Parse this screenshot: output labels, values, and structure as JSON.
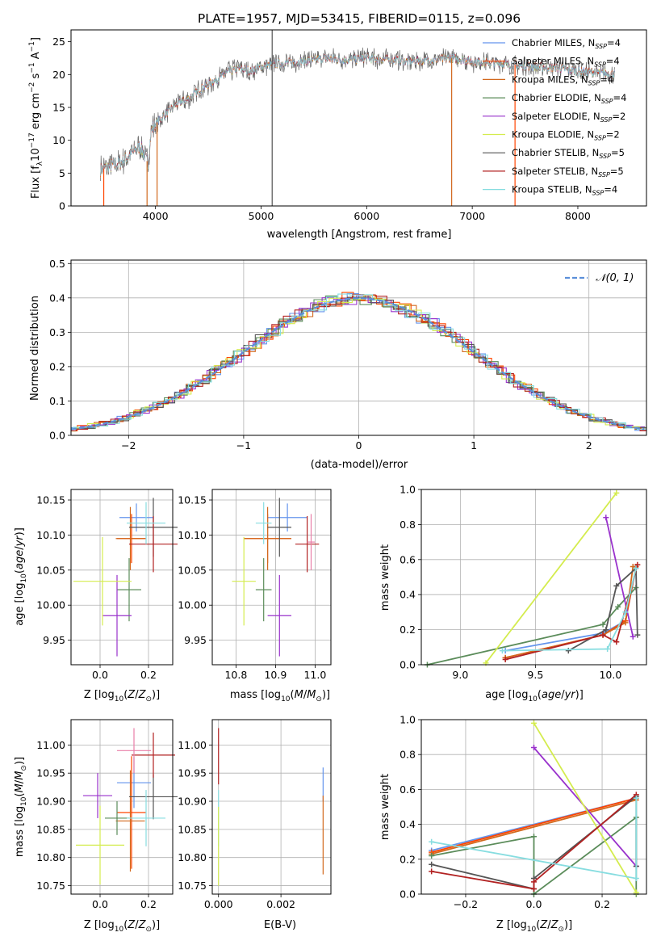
{
  "figure_title": "PLATE=1957, MJD=53415, FIBERID=0115, z=0.096",
  "colors": {
    "chabrier_miles": "#6495ED",
    "salpeter_miles": "#FF4500",
    "kroupa_miles": "#D2691E",
    "chabrier_elodie": "#5B8C5A",
    "salpeter_elodie": "#9932CC",
    "kroupa_elodie": "#D4EC4E",
    "chabrier_stelib": "#555555",
    "salpeter_stelib": "#B22222",
    "kroupa_stelib": "#87DDE0",
    "extra_pink": "#E97FA8"
  },
  "legend_spectrum": [
    {
      "name": "Chabrier MILES, N",
      "sub": "SSP",
      "tail": "=4",
      "key": "chabrier_miles"
    },
    {
      "name": "Salpeter MILES, N",
      "sub": "SSP",
      "tail": "=4",
      "key": "salpeter_miles"
    },
    {
      "name": "Kroupa MILES, N",
      "sub": "SSP",
      "tail": "=4",
      "key": "kroupa_miles"
    },
    {
      "name": "Chabrier ELODIE, N",
      "sub": "SSP",
      "tail": "=4",
      "key": "chabrier_elodie"
    },
    {
      "name": "Salpeter ELODIE, N",
      "sub": "SSP",
      "tail": "=2",
      "key": "salpeter_elodie"
    },
    {
      "name": "Kroupa ELODIE, N",
      "sub": "SSP",
      "tail": "=2",
      "key": "kroupa_elodie"
    },
    {
      "name": "Chabrier STELIB, N",
      "sub": "SSP",
      "tail": "=5",
      "key": "chabrier_stelib"
    },
    {
      "name": "Salpeter STELIB, N",
      "sub": "SSP",
      "tail": "=5",
      "key": "salpeter_stelib"
    },
    {
      "name": "Kroupa STELIB, N",
      "sub": "SSP",
      "tail": "=4",
      "key": "kroupa_stelib"
    }
  ],
  "legend_hist": "𝒩(0, 1)",
  "chart_data": [
    {
      "type": "line",
      "id": "spectrum",
      "xlabel": "wavelength [Angstrom, rest frame]",
      "ylabel_main": "Flux [f",
      "ylabel_sub": "λ",
      "ylabel_rest": "10",
      "ylabel_exp1": "−17",
      "ylabel_mid": " erg cm",
      "ylabel_exp2": "−2",
      "ylabel_s": " s",
      "ylabel_exp3": "−1",
      "ylabel_end": " A",
      "ylabel_exp4": "−1",
      "ylabel_close": "]",
      "xlim": [
        3200,
        8650
      ],
      "ylim": [
        0,
        26.8
      ],
      "xticks": [
        4000,
        5000,
        6000,
        7000,
        8000
      ],
      "yticks": [
        0,
        5,
        10,
        15,
        20,
        25
      ],
      "spectrum_envelope": {
        "x": [
          3480,
          3560,
          3650,
          3720,
          3800,
          3860,
          3900,
          3930,
          3960,
          4000,
          4100,
          4200,
          4300,
          4400,
          4500,
          4600,
          4700,
          4800,
          4900,
          5000,
          5100,
          5200,
          5400,
          5600,
          5800,
          6000,
          6200,
          6400,
          6600,
          6800,
          7000,
          7200,
          7400,
          7600,
          7800,
          8000,
          8200,
          8350
        ],
        "y": [
          5.5,
          6.0,
          6.5,
          7.2,
          8.5,
          9.0,
          7.5,
          6.5,
          11.5,
          12.5,
          14.0,
          15.5,
          16.2,
          17.5,
          18.5,
          19.5,
          20.5,
          21.0,
          20.5,
          21.2,
          21.5,
          21.8,
          22.0,
          22.5,
          22.2,
          22.5,
          22.3,
          22.0,
          22.2,
          22.5,
          22.0,
          21.8,
          21.5,
          21.2,
          21.0,
          20.5,
          20.3,
          20.0
        ]
      },
      "masked_spikes_x": [
        3510,
        3920,
        4015,
        5105,
        6805,
        7405
      ]
    },
    {
      "type": "area",
      "id": "residual_histogram",
      "xlabel": "(data-model)/error",
      "ylabel": "Normed distribution",
      "xlim": [
        -2.5,
        2.5
      ],
      "ylim": [
        0,
        0.51
      ],
      "xticks": [
        -2,
        -1,
        0,
        1,
        2
      ],
      "yticks": [
        0.0,
        0.1,
        0.2,
        0.3,
        0.4,
        0.5
      ],
      "bin_width": 0.1,
      "reference_curve": "normal(0,1)"
    },
    {
      "type": "scatter",
      "id": "age_vs_Z",
      "xlabel": "Z [log",
      "ylabel": "age",
      "xlim": [
        -0.12,
        0.3
      ],
      "ylim": [
        9.915,
        10.165
      ],
      "xticks": [
        0.0,
        0.2
      ],
      "yticks": [
        9.95,
        10.0,
        10.05,
        10.1,
        10.15
      ],
      "points": [
        {
          "key": "chabrier_miles",
          "x": 0.15,
          "y": 10.125,
          "xerr": 0.07,
          "yerr": 0.02
        },
        {
          "key": "salpeter_miles",
          "x": 0.13,
          "y": 10.095,
          "xerr": 0.06,
          "yerr": 0.035
        },
        {
          "key": "kroupa_miles",
          "x": 0.125,
          "y": 10.095,
          "xerr": 0.06,
          "yerr": 0.045
        },
        {
          "key": "chabrier_elodie",
          "x": 0.12,
          "y": 10.022,
          "xerr": 0.05,
          "yerr": 0.045
        },
        {
          "key": "salpeter_elodie",
          "x": 0.07,
          "y": 9.985,
          "xerr": 0.06,
          "yerr": 0.058
        },
        {
          "key": "kroupa_elodie",
          "x": 0.01,
          "y": 10.034,
          "xerr": 0.12,
          "yerr": 0.063
        },
        {
          "key": "chabrier_stelib",
          "x": 0.22,
          "y": 10.111,
          "xerr": 0.1,
          "yerr": 0.042
        },
        {
          "key": "salpeter_stelib",
          "x": 0.22,
          "y": 10.087,
          "xerr": 0.1,
          "yerr": 0.04
        },
        {
          "key": "kroupa_stelib",
          "x": 0.19,
          "y": 10.117,
          "xerr": 0.08,
          "yerr": 0.03
        }
      ]
    },
    {
      "type": "scatter",
      "id": "age_vs_mass",
      "xlabel": "mass [log",
      "ylabel": "",
      "xlim": [
        10.74,
        11.04
      ],
      "ylim": [
        9.915,
        10.165
      ],
      "xticks": [
        10.8,
        10.9,
        11.0
      ],
      "yticks": [
        9.95,
        10.0,
        10.05,
        10.1,
        10.15
      ],
      "points": [
        {
          "key": "chabrier_miles",
          "x": 10.93,
          "y": 10.125,
          "xerr": 0.05,
          "yerr": 0.02
        },
        {
          "key": "salpeter_miles",
          "x": 10.88,
          "y": 10.095,
          "xerr": 0.06,
          "yerr": 0.035
        },
        {
          "key": "kroupa_miles",
          "x": 10.88,
          "y": 10.095,
          "xerr": 0.06,
          "yerr": 0.045
        },
        {
          "key": "chabrier_elodie",
          "x": 10.87,
          "y": 10.022,
          "xerr": 0.02,
          "yerr": 0.045
        },
        {
          "key": "salpeter_elodie",
          "x": 10.91,
          "y": 9.985,
          "xerr": 0.03,
          "yerr": 0.058
        },
        {
          "key": "kroupa_elodie",
          "x": 10.82,
          "y": 10.034,
          "xerr": 0.03,
          "yerr": 0.063
        },
        {
          "key": "chabrier_stelib",
          "x": 10.91,
          "y": 10.111,
          "xerr": 0.03,
          "yerr": 0.042
        },
        {
          "key": "salpeter_stelib",
          "x": 10.98,
          "y": 10.087,
          "xerr": 0.03,
          "yerr": 0.04
        },
        {
          "key": "kroupa_stelib",
          "x": 10.87,
          "y": 10.117,
          "xerr": 0.02,
          "yerr": 0.03
        },
        {
          "key": "extra_pink",
          "x": 10.99,
          "y": 10.09,
          "xerr": 0.01,
          "yerr": 0.04
        }
      ]
    },
    {
      "type": "line",
      "id": "weight_vs_age",
      "xlabel": "age  [log",
      "ylabel": "mass weight",
      "xlim": [
        8.74,
        10.24
      ],
      "ylim": [
        0,
        1.0
      ],
      "xticks": [
        9.0,
        9.5,
        10.0
      ],
      "yticks": [
        0.0,
        0.2,
        0.4,
        0.6,
        0.8,
        1.0
      ],
      "series": [
        {
          "key": "chabrier_miles",
          "x": [
            9.3,
            9.95,
            10.1,
            10.17
          ],
          "y": [
            0.08,
            0.18,
            0.25,
            0.55
          ]
        },
        {
          "key": "salpeter_miles",
          "x": [
            9.3,
            9.95,
            10.1,
            10.17
          ],
          "y": [
            0.04,
            0.17,
            0.25,
            0.56
          ]
        },
        {
          "key": "kroupa_miles",
          "x": [
            9.3,
            9.95,
            10.1,
            10.15
          ],
          "y": [
            0.04,
            0.17,
            0.24,
            0.56
          ]
        },
        {
          "key": "chabrier_elodie",
          "x": [
            8.78,
            9.95,
            10.05,
            10.17
          ],
          "y": [
            0.0,
            0.23,
            0.33,
            0.44
          ]
        },
        {
          "key": "salpeter_elodie",
          "x": [
            9.97,
            10.15
          ],
          "y": [
            0.84,
            0.16
          ]
        },
        {
          "key": "kroupa_elodie",
          "x": [
            9.17,
            10.04
          ],
          "y": [
            0.01,
            0.98
          ]
        },
        {
          "key": "chabrier_stelib",
          "x": [
            9.72,
            9.97,
            10.04,
            10.17,
            10.18
          ],
          "y": [
            0.08,
            0.2,
            0.45,
            0.55,
            0.17
          ]
        },
        {
          "key": "salpeter_stelib",
          "x": [
            9.3,
            9.95,
            10.04,
            10.18
          ],
          "y": [
            0.03,
            0.17,
            0.13,
            0.57
          ]
        },
        {
          "key": "kroupa_stelib",
          "x": [
            9.28,
            9.98,
            10.1,
            10.17
          ],
          "y": [
            0.08,
            0.09,
            0.3,
            0.55
          ]
        }
      ]
    },
    {
      "type": "scatter",
      "id": "mass_vs_Z",
      "xlabel": "Z [log",
      "ylabel": "mass [log",
      "xlim": [
        -0.12,
        0.3
      ],
      "ylim": [
        10.735,
        11.045
      ],
      "xticks": [
        0.0,
        0.2
      ],
      "yticks": [
        10.75,
        10.8,
        10.85,
        10.9,
        10.95,
        11.0
      ],
      "points": [
        {
          "key": "chabrier_miles",
          "x": 0.14,
          "y": 10.933,
          "xerr": 0.07,
          "yerr": 0.045
        },
        {
          "key": "salpeter_miles",
          "x": 0.13,
          "y": 10.88,
          "xerr": 0.06,
          "yerr": 0.1
        },
        {
          "key": "kroupa_miles",
          "x": 0.125,
          "y": 10.865,
          "xerr": 0.06,
          "yerr": 0.09
        },
        {
          "key": "chabrier_elodie",
          "x": 0.07,
          "y": 10.87,
          "xerr": 0.05,
          "yerr": 0.03
        },
        {
          "key": "salpeter_elodie",
          "x": -0.01,
          "y": 10.91,
          "xerr": 0.06,
          "yerr": 0.04
        },
        {
          "key": "kroupa_elodie",
          "x": 0.0,
          "y": 10.822,
          "xerr": 0.1,
          "yerr": 0.07
        },
        {
          "key": "chabrier_stelib",
          "x": 0.22,
          "y": 10.908,
          "xerr": 0.1,
          "yerr": 0.04
        },
        {
          "key": "salpeter_stelib",
          "x": 0.22,
          "y": 10.982,
          "xerr": 0.09,
          "yerr": 0.04
        },
        {
          "key": "kroupa_stelib",
          "x": 0.19,
          "y": 10.87,
          "xerr": 0.08,
          "yerr": 0.05
        },
        {
          "key": "extra_pink",
          "x": 0.14,
          "y": 10.99,
          "xerr": 0.07,
          "yerr": 0.04
        }
      ]
    },
    {
      "type": "scatter",
      "id": "mass_vs_EBV",
      "xlabel": "E(B-V)",
      "ylabel": "",
      "xlim": [
        -0.0002,
        0.0036
      ],
      "ylim": [
        10.735,
        11.045
      ],
      "xticks": [
        0.0,
        0.002
      ],
      "xtick_labels": [
        "0.000",
        "0.002"
      ],
      "yticks": [
        10.75,
        10.8,
        10.85,
        10.9,
        10.95,
        11.0
      ],
      "points": [
        {
          "key": "salpeter_stelib",
          "x": 0.0,
          "y": 10.98,
          "xerr": 0.0,
          "yerr": 0.05
        },
        {
          "key": "kroupa_stelib",
          "x": 0.0,
          "y": 10.87,
          "xerr": 0.0,
          "yerr": 0.05
        },
        {
          "key": "kroupa_elodie",
          "x": 0.0,
          "y": 10.82,
          "xerr": 0.0,
          "yerr": 0.07
        },
        {
          "key": "chabrier_miles",
          "x": 0.00335,
          "y": 10.93,
          "xerr": 0.0,
          "yerr": 0.03
        },
        {
          "key": "kroupa_miles",
          "x": 0.00335,
          "y": 10.84,
          "xerr": 0.0,
          "yerr": 0.07
        }
      ]
    },
    {
      "type": "line",
      "id": "weight_vs_Z",
      "xlabel": "Z [log",
      "ylabel": "mass weight",
      "xlim": [
        -0.33,
        0.33
      ],
      "ylim": [
        0,
        1.0
      ],
      "xticks": [
        -0.2,
        0.0,
        0.2
      ],
      "yticks": [
        0.0,
        0.2,
        0.4,
        0.6,
        0.8,
        1.0
      ],
      "series": [
        {
          "key": "chabrier_miles",
          "x": [
            -0.3,
            0.3
          ],
          "y": [
            0.25,
            0.55
          ]
        },
        {
          "key": "salpeter_miles",
          "x": [
            -0.3,
            0.3
          ],
          "y": [
            0.24,
            0.55
          ]
        },
        {
          "key": "kroupa_miles",
          "x": [
            -0.3,
            0.3
          ],
          "y": [
            0.23,
            0.54
          ]
        },
        {
          "key": "chabrier_elodie",
          "x": [
            -0.3,
            0.0,
            0.0,
            0.3,
            0.3
          ],
          "y": [
            0.22,
            0.33,
            0.0,
            0.44,
            0.0
          ]
        },
        {
          "key": "salpeter_elodie",
          "x": [
            0.0,
            0.3
          ],
          "y": [
            0.84,
            0.16
          ]
        },
        {
          "key": "kroupa_elodie",
          "x": [
            0.0,
            0.3
          ],
          "y": [
            0.98,
            0.01
          ]
        },
        {
          "key": "chabrier_stelib",
          "x": [
            -0.3,
            0.0,
            0.0,
            0.3,
            0.3
          ],
          "y": [
            0.17,
            0.03,
            0.09,
            0.56,
            0.16
          ]
        },
        {
          "key": "salpeter_stelib",
          "x": [
            -0.3,
            0.0,
            0.0,
            0.3
          ],
          "y": [
            0.13,
            0.03,
            0.07,
            0.57
          ]
        },
        {
          "key": "kroupa_stelib",
          "x": [
            -0.3,
            0.3,
            0.3
          ],
          "y": [
            0.3,
            0.09,
            0.55
          ]
        }
      ]
    }
  ]
}
